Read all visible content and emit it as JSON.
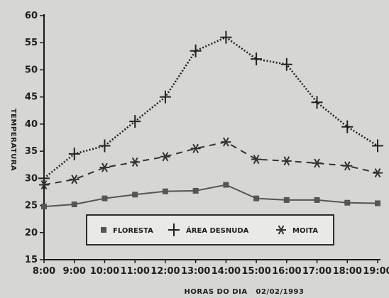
{
  "chart_data": {
    "type": "line",
    "x": [
      "8:00",
      "9:00",
      "10:00",
      "11:00",
      "12:00",
      "13:00",
      "14:00",
      "15:00",
      "16:00",
      "17:00",
      "18:00",
      "19:00"
    ],
    "series": [
      {
        "name": "FLORESTA",
        "marker": "square",
        "line": "solid",
        "color": "#555555",
        "values": [
          24.8,
          25.2,
          26.3,
          27.0,
          27.6,
          27.7,
          28.8,
          26.3,
          26.0,
          26.0,
          25.5,
          25.4
        ]
      },
      {
        "name": "ÁREA DESNUDA",
        "marker": "plus",
        "line": "dotted",
        "color": "#222222",
        "values": [
          30.0,
          34.5,
          36.0,
          40.5,
          45.0,
          53.5,
          56.0,
          52.0,
          51.0,
          44.0,
          39.5,
          36.0
        ]
      },
      {
        "name": "MOITA",
        "marker": "asterisk",
        "line": "dashed",
        "color": "#333333",
        "values": [
          28.8,
          29.8,
          32.0,
          33.0,
          34.0,
          35.5,
          36.7,
          33.5,
          33.2,
          32.8,
          32.3,
          31.0
        ]
      }
    ],
    "ylabel": "TEMPERATURA",
    "xlabel": "HORAS DO DIA   02/02/1993",
    "ylim": [
      15,
      60
    ],
    "yticks": [
      15,
      20,
      25,
      30,
      35,
      40,
      45,
      50,
      55,
      60
    ],
    "grid": false,
    "legend_position": "bottom-center"
  }
}
